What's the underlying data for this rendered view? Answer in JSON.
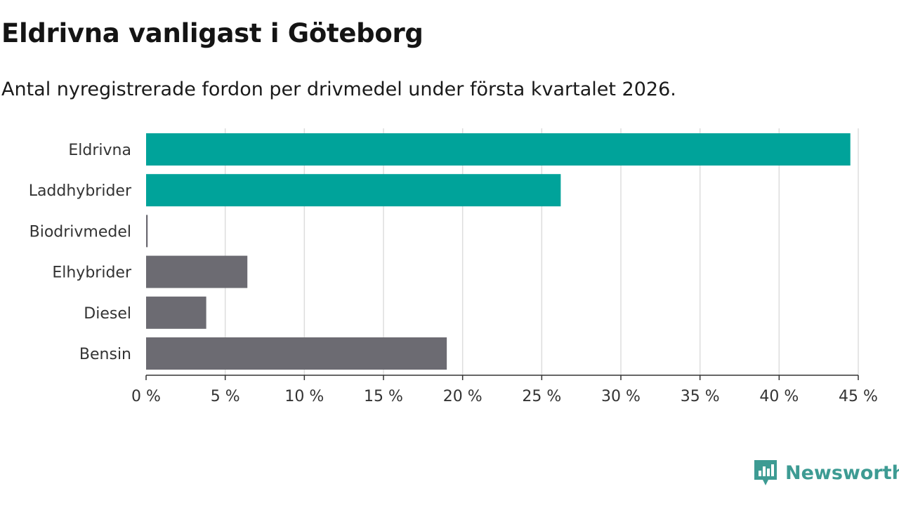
{
  "header": {
    "title": "Eldrivna vanligast i Göteborg",
    "subtitle": "Antal nyregistrerade fordon per drivmedel under första kvartalet 2026."
  },
  "brand": {
    "name": "Newsworthy",
    "color": "#3d9b93",
    "icon": "newsworthy-logo-icon"
  },
  "chart_data": {
    "type": "bar",
    "orientation": "horizontal",
    "title": "Eldrivna vanligast i Göteborg",
    "subtitle": "Antal nyregistrerade fordon per drivmedel under första kvartalet 2026.",
    "categories": [
      "Eldrivna",
      "Laddhybrider",
      "Biodrivmedel",
      "Elhybrider",
      "Diesel",
      "Bensin"
    ],
    "values": [
      44.5,
      26.2,
      0.1,
      6.4,
      3.8,
      19.0
    ],
    "colors": [
      "#00a39a",
      "#00a39a",
      "#6c6b72",
      "#6c6b72",
      "#6c6b72",
      "#6c6b72"
    ],
    "unit": "%",
    "xlim": [
      0,
      45
    ],
    "xticks": [
      0,
      5,
      10,
      15,
      20,
      25,
      30,
      35,
      40,
      45
    ],
    "xtick_labels": [
      "0 %",
      "5 %",
      "10 %",
      "15 %",
      "20 %",
      "25 %",
      "30 %",
      "35 %",
      "40 %",
      "45 %"
    ],
    "xlabel": "",
    "ylabel": "",
    "grid": true,
    "gridline_color": "#dddddd",
    "axis_color": "#333333"
  }
}
